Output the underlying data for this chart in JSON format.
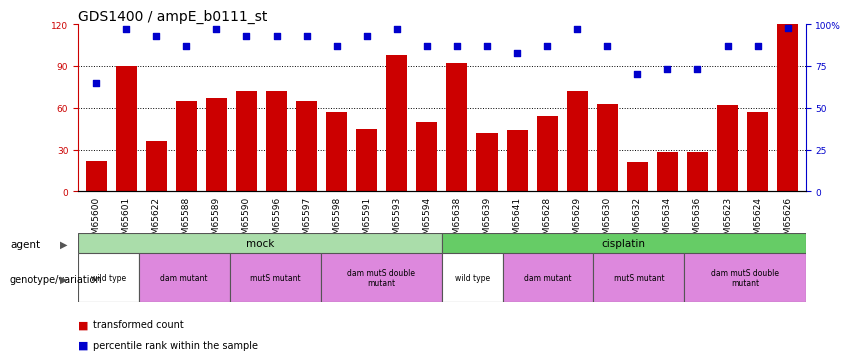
{
  "title": "GDS1400 / ampE_b0111_st",
  "samples": [
    "GSM65600",
    "GSM65601",
    "GSM65622",
    "GSM65588",
    "GSM65589",
    "GSM65590",
    "GSM65596",
    "GSM65597",
    "GSM65598",
    "GSM65591",
    "GSM65593",
    "GSM65594",
    "GSM65638",
    "GSM65639",
    "GSM65641",
    "GSM65628",
    "GSM65629",
    "GSM65630",
    "GSM65632",
    "GSM65634",
    "GSM65636",
    "GSM65623",
    "GSM65624",
    "GSM65626"
  ],
  "bar_values": [
    22,
    90,
    36,
    65,
    67,
    72,
    72,
    65,
    57,
    45,
    98,
    50,
    92,
    42,
    44,
    54,
    72,
    63,
    21,
    28,
    28,
    62,
    57,
    120
  ],
  "percentile_values": [
    65,
    97,
    93,
    87,
    97,
    93,
    93,
    93,
    87,
    93,
    97,
    87,
    87,
    87,
    83,
    87,
    97,
    87,
    70,
    73,
    73,
    87,
    87,
    98
  ],
  "bar_color": "#cc0000",
  "percentile_color": "#0000cc",
  "ylim": [
    0,
    120
  ],
  "ylim_right": [
    0,
    100
  ],
  "yticks_left": [
    0,
    30,
    60,
    90,
    120
  ],
  "yticks_right": [
    0,
    25,
    50,
    75,
    100
  ],
  "ytick_labels_right": [
    "0",
    "25",
    "50",
    "75",
    "100%"
  ],
  "mock_label": "mock",
  "cisplatin_label": "cisplatin",
  "mock_color": "#aaddaa",
  "cisplatin_color": "#66cc66",
  "genotype_groups_mock": [
    {
      "label": "wild type",
      "start": 0,
      "end": 2,
      "color": "#ffffff"
    },
    {
      "label": "dam mutant",
      "start": 2,
      "end": 5,
      "color": "#dd88dd"
    },
    {
      "label": "mutS mutant",
      "start": 5,
      "end": 8,
      "color": "#dd88dd"
    },
    {
      "label": "dam mutS double\nmutant",
      "start": 8,
      "end": 12,
      "color": "#dd88dd"
    }
  ],
  "genotype_groups_cisplatin": [
    {
      "label": "wild type",
      "start": 12,
      "end": 14,
      "color": "#ffffff"
    },
    {
      "label": "dam mutant",
      "start": 14,
      "end": 17,
      "color": "#dd88dd"
    },
    {
      "label": "mutS mutant",
      "start": 17,
      "end": 20,
      "color": "#dd88dd"
    },
    {
      "label": "dam mutS double\nmutant",
      "start": 20,
      "end": 24,
      "color": "#dd88dd"
    }
  ],
  "legend_bar_label": "transformed count",
  "legend_pct_label": "percentile rank within the sample",
  "agent_label": "agent",
  "genotype_label": "genotype/variation",
  "title_fontsize": 10,
  "tick_fontsize": 6.5,
  "label_fontsize": 7.5
}
